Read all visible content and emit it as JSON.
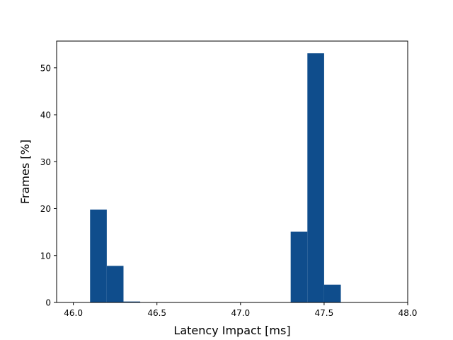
{
  "chart_data": {
    "type": "bar",
    "title": "",
    "xlabel": "Latency Impact [ms]",
    "ylabel": "Frames [%]",
    "xlim": [
      45.9,
      48.0
    ],
    "ylim": [
      0,
      55.7
    ],
    "bar_color": "#0f4d8c",
    "bin_width": 0.1,
    "xticks": [
      {
        "value": 46.0,
        "label": "46.0"
      },
      {
        "value": 46.5,
        "label": "46.5"
      },
      {
        "value": 47.0,
        "label": "47.0"
      },
      {
        "value": 47.5,
        "label": "47.5"
      },
      {
        "value": 48.0,
        "label": "48.0"
      }
    ],
    "yticks": [
      {
        "value": 0,
        "label": "0"
      },
      {
        "value": 10,
        "label": "10"
      },
      {
        "value": 20,
        "label": "20"
      },
      {
        "value": 30,
        "label": "30"
      },
      {
        "value": 40,
        "label": "40"
      },
      {
        "value": 50,
        "label": "50"
      }
    ],
    "bins": [
      {
        "x0": 46.1,
        "x1": 46.2,
        "value": 19.8
      },
      {
        "x0": 46.2,
        "x1": 46.3,
        "value": 7.8
      },
      {
        "x0": 46.3,
        "x1": 46.4,
        "value": 0.2
      },
      {
        "x0": 47.3,
        "x1": 47.4,
        "value": 15.1
      },
      {
        "x0": 47.4,
        "x1": 47.5,
        "value": 53.1
      },
      {
        "x0": 47.5,
        "x1": 47.6,
        "value": 3.8
      }
    ],
    "grid": false,
    "legend": "none"
  }
}
